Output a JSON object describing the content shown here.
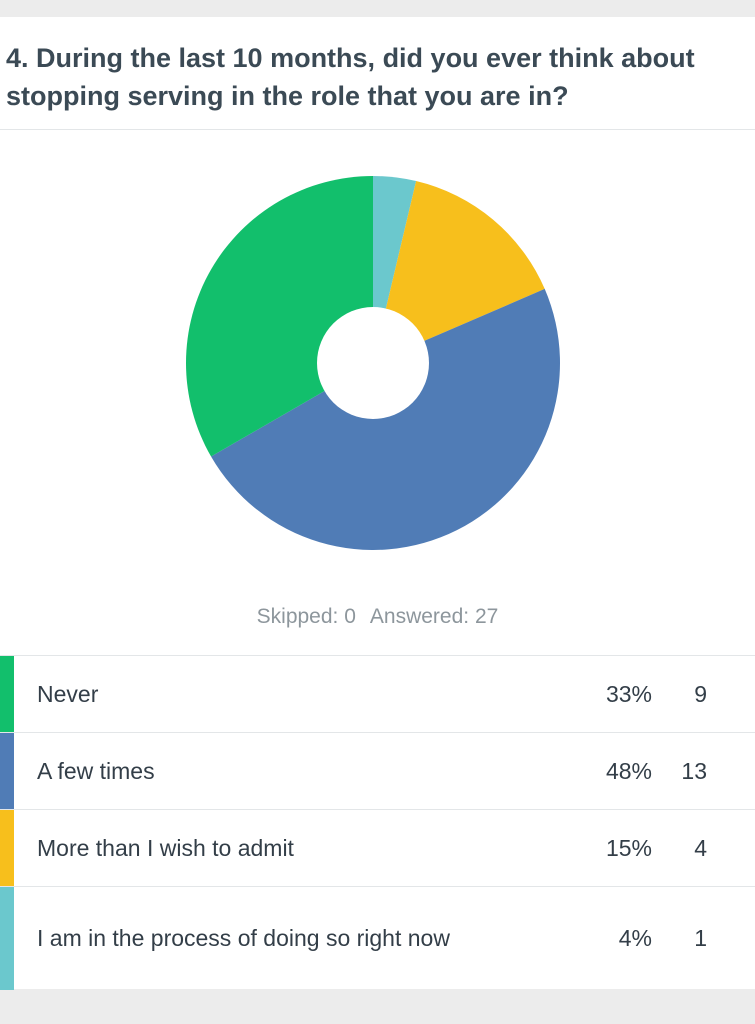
{
  "question": {
    "title": "4. During the last 10 months, did you ever think about stopping serving in the role that you are in?"
  },
  "summary": {
    "skipped_label": "Skipped: 0",
    "answered_label": "Answered: 27"
  },
  "chart_data": {
    "type": "pie",
    "donut": true,
    "total": 27,
    "slices": [
      {
        "label": "Never",
        "percent_label": "33%",
        "count": 9,
        "color": "#12bf6c"
      },
      {
        "label": "A few times",
        "percent_label": "48%",
        "count": 13,
        "color": "#507cb6"
      },
      {
        "label": "More than I wish to admit",
        "percent_label": "15%",
        "count": 4,
        "color": "#f7bf1c"
      },
      {
        "label": "I am in the process of doing so right now",
        "percent_label": "4%",
        "count": 1,
        "color": "#6bc8cd"
      }
    ]
  }
}
